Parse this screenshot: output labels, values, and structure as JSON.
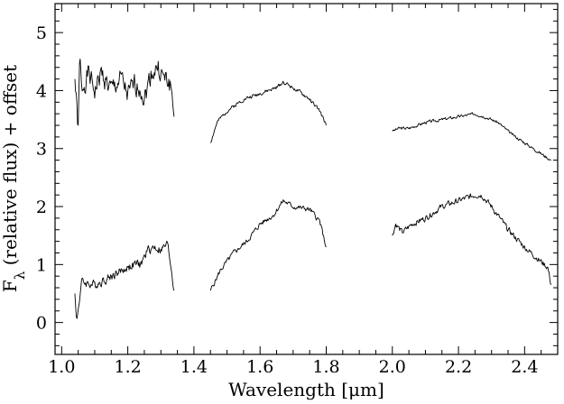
{
  "chart_data": {
    "type": "line",
    "title": "",
    "xlabel": "Wavelength [μm]",
    "ylabel": "Fλ (relative flux) + offset",
    "ylabel_parts": {
      "main": "F",
      "subscript": "λ",
      "rest": " (relative flux) + offset"
    },
    "xlim": [
      0.98,
      2.5
    ],
    "ylim": [
      -0.55,
      5.5
    ],
    "xticks": [
      1.0,
      1.2,
      1.4,
      1.6,
      1.8,
      2.0,
      2.2,
      2.4
    ],
    "xtick_labels": [
      "1.0",
      "1.2",
      "1.4",
      "1.6",
      "1.8",
      "2.0",
      "2.2",
      "2.4"
    ],
    "yticks": [
      0,
      1,
      2,
      3,
      4,
      5
    ],
    "ytick_labels": [
      "0",
      "1",
      "2",
      "3",
      "4",
      "5"
    ],
    "grid": false,
    "line_color": "#000000",
    "series": [
      {
        "segments": [
          {
            "anchors": [
              [
                1.04,
                4.2
              ],
              [
                1.05,
                3.3
              ],
              [
                1.055,
                4.6
              ],
              [
                1.06,
                4.0
              ],
              [
                1.08,
                4.3
              ],
              [
                1.1,
                4.0
              ],
              [
                1.12,
                4.3
              ],
              [
                1.15,
                4.0
              ],
              [
                1.18,
                4.2
              ],
              [
                1.2,
                3.9
              ],
              [
                1.22,
                4.1
              ],
              [
                1.24,
                4.05
              ],
              [
                1.25,
                3.85
              ],
              [
                1.27,
                4.3
              ],
              [
                1.29,
                4.4
              ],
              [
                1.31,
                4.2
              ],
              [
                1.33,
                4.1
              ],
              [
                1.34,
                3.55
              ]
            ],
            "noise": 0.28,
            "seed": 1
          },
          {
            "anchors": [
              [
                1.45,
                3.1
              ],
              [
                1.47,
                3.45
              ],
              [
                1.5,
                3.65
              ],
              [
                1.55,
                3.85
              ],
              [
                1.6,
                3.95
              ],
              [
                1.65,
                4.05
              ],
              [
                1.67,
                4.15
              ],
              [
                1.7,
                4.05
              ],
              [
                1.75,
                3.85
              ],
              [
                1.78,
                3.65
              ],
              [
                1.8,
                3.4
              ]
            ],
            "noise": 0.05,
            "seed": 2
          },
          {
            "anchors": [
              [
                2.0,
                3.3
              ],
              [
                2.02,
                3.35
              ],
              [
                2.05,
                3.35
              ],
              [
                2.1,
                3.45
              ],
              [
                2.15,
                3.5
              ],
              [
                2.2,
                3.55
              ],
              [
                2.25,
                3.6
              ],
              [
                2.28,
                3.55
              ],
              [
                2.32,
                3.45
              ],
              [
                2.36,
                3.25
              ],
              [
                2.4,
                3.1
              ],
              [
                2.44,
                2.95
              ],
              [
                2.48,
                2.8
              ]
            ],
            "noise": 0.04,
            "seed": 3
          }
        ]
      },
      {
        "segments": [
          {
            "anchors": [
              [
                1.04,
                0.5
              ],
              [
                1.045,
                0.0
              ],
              [
                1.06,
                0.7
              ],
              [
                1.1,
                0.65
              ],
              [
                1.15,
                0.8
              ],
              [
                1.2,
                0.95
              ],
              [
                1.22,
                1.0
              ],
              [
                1.24,
                1.0
              ],
              [
                1.26,
                1.25
              ],
              [
                1.28,
                1.3
              ],
              [
                1.3,
                1.25
              ],
              [
                1.32,
                1.35
              ],
              [
                1.33,
                1.0
              ],
              [
                1.34,
                0.55
              ]
            ],
            "noise": 0.12,
            "seed": 4
          },
          {
            "anchors": [
              [
                1.45,
                0.55
              ],
              [
                1.48,
                0.9
              ],
              [
                1.52,
                1.2
              ],
              [
                1.56,
                1.4
              ],
              [
                1.6,
                1.7
              ],
              [
                1.64,
                1.85
              ],
              [
                1.67,
                2.1
              ],
              [
                1.7,
                2.0
              ],
              [
                1.75,
                1.95
              ],
              [
                1.78,
                1.75
              ],
              [
                1.8,
                1.3
              ]
            ],
            "noise": 0.07,
            "seed": 5
          },
          {
            "anchors": [
              [
                2.0,
                1.5
              ],
              [
                2.01,
                1.7
              ],
              [
                2.03,
                1.55
              ],
              [
                2.06,
                1.7
              ],
              [
                2.1,
                1.8
              ],
              [
                2.15,
                2.0
              ],
              [
                2.2,
                2.1
              ],
              [
                2.25,
                2.2
              ],
              [
                2.27,
                2.2
              ],
              [
                2.3,
                2.0
              ],
              [
                2.35,
                1.6
              ],
              [
                2.4,
                1.3
              ],
              [
                2.44,
                1.1
              ],
              [
                2.47,
                0.95
              ],
              [
                2.48,
                0.65
              ]
            ],
            "noise": 0.08,
            "seed": 6
          }
        ]
      }
    ]
  }
}
